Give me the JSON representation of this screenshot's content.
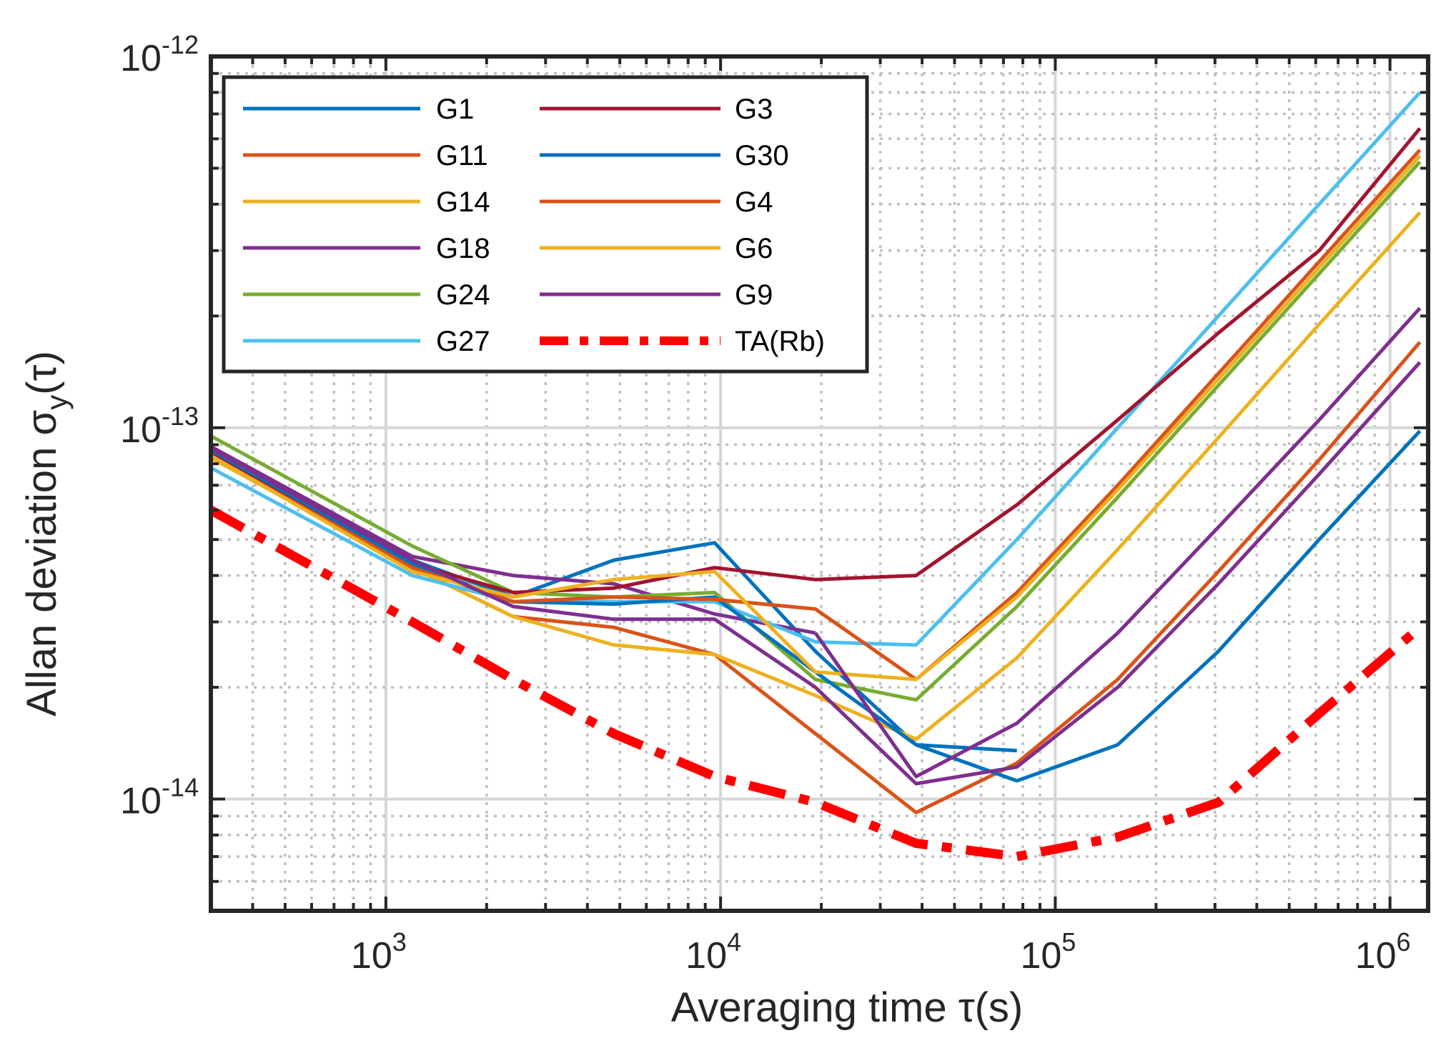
{
  "chart_data": {
    "type": "line",
    "title": "",
    "xlabel": "Averaging time τ(s)",
    "ylabel": "Allan deviation σ",
    "ylabel_subscript": "y",
    "ylabel_suffix": "(τ)",
    "xscale": "log",
    "yscale": "log",
    "xlim": [
      300,
      1300000
    ],
    "ylim": [
      5e-15,
      1e-12
    ],
    "grid": true,
    "legend_position": "top-left",
    "x_ticks": [
      {
        "base": "10",
        "exp": "3",
        "value": 1000
      },
      {
        "base": "10",
        "exp": "4",
        "value": 10000
      },
      {
        "base": "10",
        "exp": "5",
        "value": 100000
      },
      {
        "base": "10",
        "exp": "6",
        "value": 1000000
      }
    ],
    "y_ticks": [
      {
        "base": "10",
        "exp": "-14",
        "value": 1e-14
      },
      {
        "base": "10",
        "exp": "-13",
        "value": 1e-13
      },
      {
        "base": "10",
        "exp": "-12",
        "value": 1e-12
      }
    ],
    "series": [
      {
        "name": "G1",
        "color": "#0072BD",
        "style": "solid",
        "x": [
          300,
          1200,
          2400,
          4800,
          9600,
          19200,
          38400,
          76800
        ],
        "y": [
          8.8e-14,
          4.4e-14,
          3.5e-14,
          4.4e-14,
          4.9e-14,
          2.5e-14,
          1.4e-14,
          1.35e-14
        ]
      },
      {
        "name": "G11",
        "color": "#D95319",
        "style": "solid",
        "x": [
          300,
          1200,
          2400,
          4800,
          9600,
          19200,
          38400,
          76800,
          153600,
          307200,
          614400,
          1228800
        ],
        "y": [
          8.5e-14,
          4.2e-14,
          3.1e-14,
          2.9e-14,
          2.45e-14,
          1.5e-14,
          9.2e-15,
          1.25e-14,
          2.1e-14,
          4.1e-14,
          8.2e-14,
          1.7e-13
        ]
      },
      {
        "name": "G14",
        "color": "#EDB120",
        "style": "solid",
        "x": [
          300,
          1200,
          2400,
          4800,
          9600,
          19200,
          38400,
          76800,
          153600,
          307200,
          614400,
          1228800
        ],
        "y": [
          8.3e-14,
          4.2e-14,
          3.1e-14,
          2.6e-14,
          2.45e-14,
          1.9e-14,
          1.45e-14,
          2.4e-14,
          4.7e-14,
          9.4e-14,
          1.9e-13,
          3.8e-13
        ]
      },
      {
        "name": "G18",
        "color": "#7E2F8E",
        "style": "solid",
        "x": [
          300,
          1200,
          2400,
          4800,
          9600,
          19200
        ],
        "y": [
          8.9e-14,
          4.5e-14,
          4e-14,
          3.8e-14,
          3.15e-14,
          2.8e-14
        ]
      },
      {
        "name": "G24",
        "color": "#77AC30",
        "style": "solid",
        "x": [
          300,
          1200,
          2400,
          4800,
          9600,
          19200,
          38400,
          76800,
          153600,
          307200,
          614400,
          1228800
        ],
        "y": [
          9.5e-14,
          4.8e-14,
          3.6e-14,
          3.5e-14,
          3.6e-14,
          2.1e-14,
          1.85e-14,
          3.3e-14,
          6.5e-14,
          1.3e-13,
          2.6e-13,
          5.2e-13
        ]
      },
      {
        "name": "G27",
        "color": "#4DBEEE",
        "style": "solid",
        "x": [
          300,
          1200,
          2400,
          4800,
          9600,
          19200,
          38400,
          76800,
          153600,
          307200,
          614400,
          1228800
        ],
        "y": [
          7.8e-14,
          4e-14,
          3.4e-14,
          3.4e-14,
          3.4e-14,
          2.65e-14,
          2.6e-14,
          5e-14,
          1e-13,
          2e-13,
          4e-13,
          8e-13
        ]
      },
      {
        "name": "G3",
        "color": "#A2142F",
        "style": "solid",
        "x": [
          300,
          1200,
          2400,
          4800,
          9600,
          19200,
          38400,
          76800,
          153600,
          307200,
          614400,
          1228800
        ],
        "y": [
          8.6e-14,
          4.3e-14,
          3.6e-14,
          3.7e-14,
          4.2e-14,
          3.9e-14,
          4e-14,
          6.2e-14,
          1.05e-13,
          1.8e-13,
          3e-13,
          6.4e-13
        ]
      },
      {
        "name": "G30",
        "color": "#0072BD",
        "style": "solid",
        "x": [
          300,
          1200,
          2400,
          4800,
          9600,
          19200,
          38400,
          76800,
          153600,
          307200,
          614400,
          1228800
        ],
        "y": [
          8.7e-14,
          4.3e-14,
          3.4e-14,
          3.35e-14,
          3.5e-14,
          2.2e-14,
          1.4e-14,
          1.12e-14,
          1.4e-14,
          2.5e-14,
          5e-14,
          9.8e-14
        ]
      },
      {
        "name": "G4",
        "color": "#D95319",
        "style": "solid",
        "x": [
          300,
          1200,
          2400,
          4800,
          9600,
          19200,
          38400,
          76800,
          153600,
          307200,
          614400,
          1228800
        ],
        "y": [
          8.4e-14,
          4.2e-14,
          3.4e-14,
          3.5e-14,
          3.45e-14,
          3.25e-14,
          2.1e-14,
          3.6e-14,
          7e-14,
          1.4e-13,
          2.8e-13,
          5.6e-13
        ]
      },
      {
        "name": "G6",
        "color": "#EDB120",
        "style": "solid",
        "x": [
          300,
          1200,
          2400,
          4800,
          9600,
          19200,
          38400,
          76800,
          153600,
          307200,
          614400,
          1228800
        ],
        "y": [
          8.4e-14,
          4.1e-14,
          3.5e-14,
          3.9e-14,
          4.1e-14,
          2.2e-14,
          2.1e-14,
          3.5e-14,
          6.8e-14,
          1.35e-13,
          2.7e-13,
          5.4e-13
        ]
      },
      {
        "name": "G9",
        "color": "#7E2F8E",
        "style": "solid",
        "x": [
          300,
          1200,
          2400,
          4800,
          9600,
          19200,
          38400,
          76800,
          153600,
          307200,
          614400,
          1228800
        ],
        "y": [
          8.8e-14,
          4.4e-14,
          3.3e-14,
          3.05e-14,
          3.05e-14,
          2e-14,
          1.1e-14,
          1.22e-14,
          2e-14,
          3.8e-14,
          7.5e-14,
          1.5e-13
        ]
      },
      {
        "name": "G18",
        "legend": false,
        "color": "#7E2F8E",
        "style": "solid",
        "x": [
          19200,
          38400,
          76800,
          153600,
          307200,
          614400,
          1228800
        ],
        "y": [
          2.8e-14,
          1.15e-14,
          1.6e-14,
          2.8e-14,
          5.4e-14,
          1.05e-13,
          2.1e-13
        ]
      },
      {
        "name": "TA(Rb)",
        "color": "#FF0000",
        "style": "dashdot",
        "x": [
          300,
          1200,
          2400,
          4800,
          9600,
          19200,
          38400,
          76800,
          153600,
          307200,
          614400,
          1228800
        ],
        "y": [
          6e-14,
          3e-14,
          2.1e-14,
          1.5e-14,
          1.15e-14,
          9.8e-15,
          7.6e-15,
          7e-15,
          7.9e-15,
          9.8e-15,
          1.7e-14,
          2.9e-14
        ]
      }
    ],
    "legend_columns": [
      [
        "G1",
        "G11",
        "G14",
        "G18",
        "G24",
        "G27"
      ],
      [
        "G3",
        "G30",
        "G4",
        "G6",
        "G9",
        "TA(Rb)"
      ]
    ]
  }
}
